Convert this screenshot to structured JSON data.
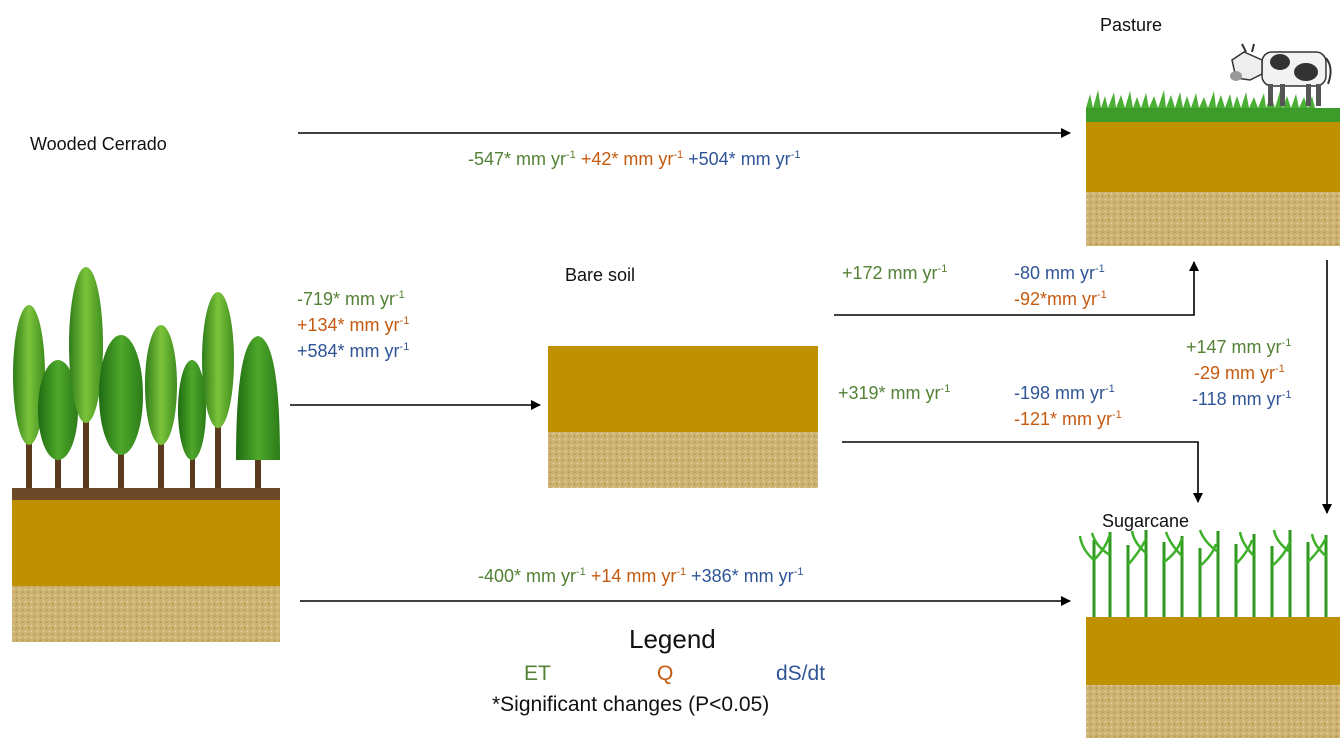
{
  "labels": {
    "wooded_cerrado": "Wooded Cerrado",
    "pasture": "Pasture",
    "bare_soil": "Bare soil",
    "sugarcane": "Sugarcane"
  },
  "flows": {
    "cerrado_to_pasture": {
      "et": "-547* mm  yr",
      "q": "+42* mm yr",
      "ds": "+504* mm yr"
    },
    "cerrado_to_bare": {
      "et": "-719* mm yr",
      "q": "+134* mm yr",
      "ds": "+584* mm yr"
    },
    "bare_to_pasture": {
      "et": "+172 mm yr",
      "ds": "-80 mm yr",
      "q": "-92*mm yr"
    },
    "bare_to_sugarcane": {
      "et": "+319* mm yr",
      "ds": "-198 mm yr",
      "q": "-121* mm yr"
    },
    "pasture_to_sugarcane": {
      "et": "+147 mm yr",
      "q": "-29 mm yr",
      "ds": "-118 mm yr"
    },
    "cerrado_to_sugarcane": {
      "et": "-400* mm yr",
      "q": "+14 mm yr",
      "ds": "+386* mm yr"
    }
  },
  "superscript": "-1",
  "legend": {
    "title": "Legend",
    "et": "ET",
    "q": "Q",
    "ds": "dS/dt",
    "note": "*Significant changes (P<0.05)"
  },
  "colors": {
    "et": "#538135",
    "q": "#c55a11",
    "ds": "#2f5597",
    "soil": "#bf9000",
    "soil_deep": "#c9ad6a",
    "leaf_green": "#4aa82a",
    "grass": "#3d9b2a"
  }
}
